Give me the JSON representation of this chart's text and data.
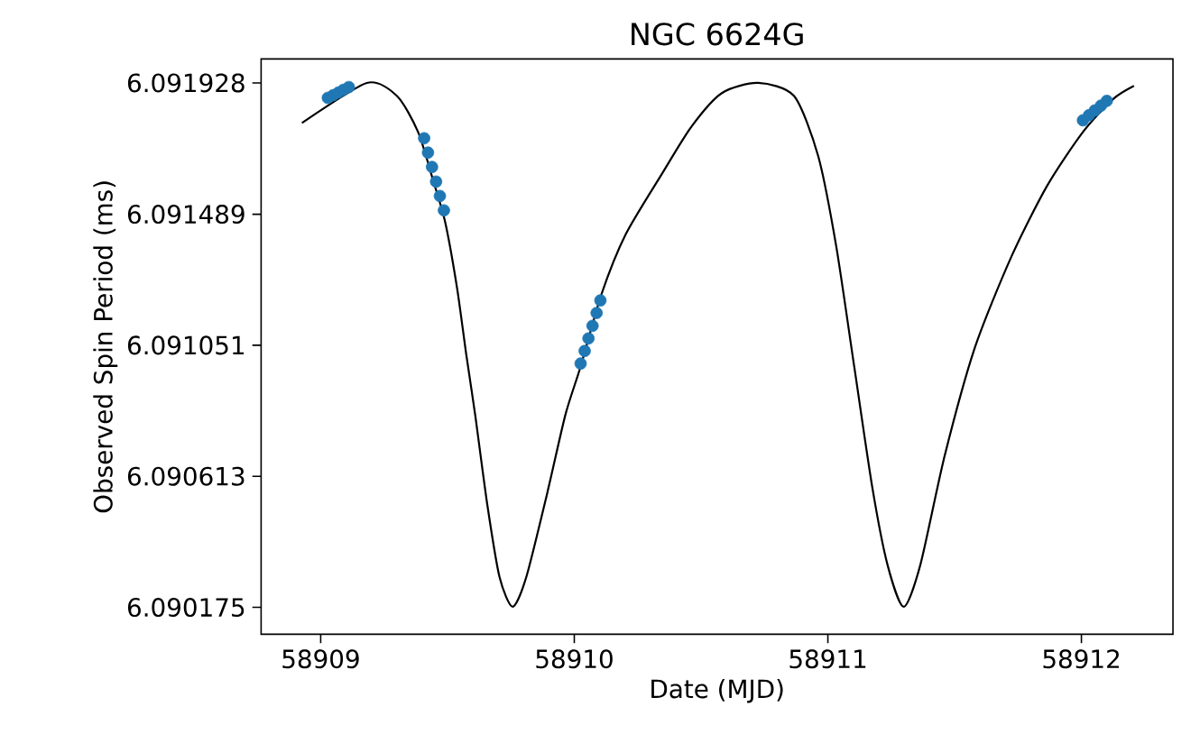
{
  "chart_data": {
    "type": "scatter",
    "title": "NGC 6624G",
    "xlabel": "Date (MJD)",
    "ylabel": "Observed Spin Period (ms)",
    "xlim": [
      58908.765,
      58912.361
    ],
    "ylim": [
      6.090085,
      6.092008
    ],
    "xticks": [
      58909,
      58910,
      58911,
      58912
    ],
    "yticks": [
      6.090175,
      6.090613,
      6.091051,
      6.091489,
      6.091928
    ],
    "series": [
      {
        "type": "line",
        "color": "#000000",
        "marker": "none",
        "x": [
          58908.926,
          58909.182,
          58909.301,
          58909.384,
          58909.443,
          58909.491,
          58909.538,
          58909.574,
          58909.609,
          58909.657,
          58909.705,
          58909.757,
          58909.811,
          58909.894,
          58909.965,
          58910.025,
          58910.107,
          58910.203,
          58910.345,
          58910.463,
          58910.582,
          58910.725,
          58910.867,
          58910.962,
          58911.033,
          58911.104,
          58911.175,
          58911.235,
          58911.299,
          58911.365,
          58911.46,
          58911.579,
          58911.721,
          58911.864,
          58912.006,
          58912.125,
          58912.207
        ],
        "values": [
          6.091794,
          6.091928,
          6.091884,
          6.091764,
          6.091603,
          6.091462,
          6.091241,
          6.09102,
          6.090819,
          6.090518,
          6.090277,
          6.090177,
          6.090277,
          6.090559,
          6.090819,
          6.09098,
          6.091221,
          6.091422,
          6.091623,
          6.091783,
          6.091894,
          6.091928,
          6.091884,
          6.091683,
          6.091382,
          6.09098,
          6.090578,
          6.090318,
          6.090177,
          6.090318,
          6.090679,
          6.091041,
          6.091342,
          6.091583,
          6.091764,
          6.091874,
          6.091918
        ]
      },
      {
        "color": "#1f77b4",
        "marker": "circle",
        "x": [
          58909.028,
          58909.049,
          58909.07,
          58909.09,
          58909.111,
          58909.408,
          58909.423,
          58909.439,
          58909.455,
          58909.47,
          58909.486,
          58910.025,
          58910.041,
          58910.056,
          58910.072,
          58910.088,
          58910.103,
          58912.006,
          58912.03,
          58912.053,
          58912.077,
          58912.1
        ],
        "values": [
          6.091878,
          6.091887,
          6.091896,
          6.091905,
          6.091914,
          6.091743,
          6.091695,
          6.091647,
          6.091598,
          6.09155,
          6.091502,
          6.09099,
          6.091032,
          6.091074,
          6.091116,
          6.091159,
          6.091201,
          6.091803,
          6.09182,
          6.091836,
          6.091852,
          6.091868
        ]
      }
    ]
  }
}
